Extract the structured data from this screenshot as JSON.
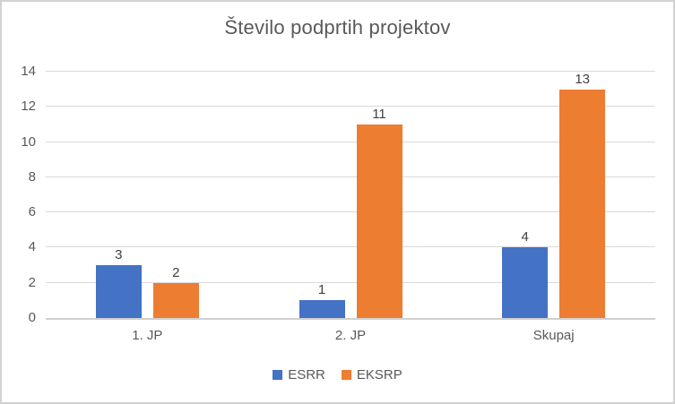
{
  "chart_data": {
    "type": "bar",
    "title": "Število podprtih projektov",
    "categories": [
      "1. JP",
      "2. JP",
      "Skupaj"
    ],
    "series": [
      {
        "name": "ESRR",
        "color": "#4472c4",
        "values": [
          3,
          1,
          4
        ]
      },
      {
        "name": "EKSRP",
        "color": "#ed7d31",
        "values": [
          2,
          11,
          13
        ]
      }
    ],
    "xlabel": "",
    "ylabel": "",
    "ylim": [
      0,
      14
    ],
    "yticks": [
      0,
      2,
      4,
      6,
      8,
      10,
      12,
      14
    ],
    "grid": true,
    "data_labels": true,
    "legend_position": "bottom"
  },
  "colors": {
    "background": "#ffffff",
    "frame_border": "#d2d2d2",
    "title_text": "#595959",
    "axis_text": "#595959",
    "value_label_text": "#404040",
    "gridline": "#d9d9d9",
    "axis_line": "#d0d0d0"
  }
}
